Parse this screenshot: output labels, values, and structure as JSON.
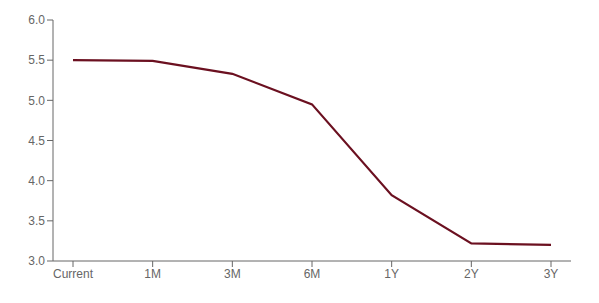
{
  "chart_data": {
    "type": "line",
    "categories": [
      "Current",
      "1M",
      "3M",
      "6M",
      "1Y",
      "2Y",
      "3Y"
    ],
    "values": [
      5.5,
      5.49,
      5.33,
      4.95,
      3.82,
      3.22,
      3.2
    ],
    "color": "#6B1020",
    "ylim": [
      3.0,
      6.0
    ],
    "yticks": [
      {
        "value": 3.0,
        "label": "3.0"
      },
      3.5,
      {
        "value": 4.0,
        "label": "4.0"
      },
      4.5,
      {
        "value": 5.0,
        "label": "5.0"
      },
      5.5,
      {
        "value": 6.0,
        "label": "6.0"
      }
    ],
    "grid": false
  }
}
